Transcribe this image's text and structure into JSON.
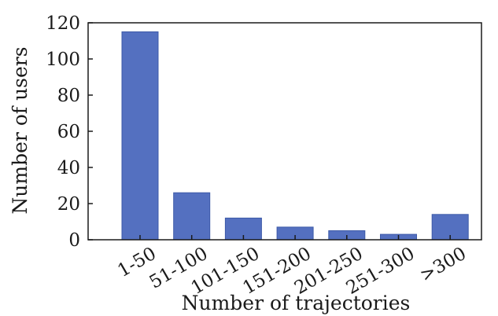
{
  "chart_data": {
    "type": "bar",
    "title": "",
    "xlabel": "Number of trajectories",
    "ylabel": "Number of users",
    "categories": [
      "1-50",
      "51-100",
      "101-150",
      "151-200",
      "201-250",
      "251-300",
      ">300"
    ],
    "values": [
      115,
      26,
      12,
      7,
      5,
      3,
      14
    ],
    "ylim": [
      0,
      120
    ],
    "yticks": [
      "0",
      "20",
      "40",
      "60",
      "80",
      "100",
      "120"
    ],
    "grid": false,
    "legend": "none",
    "colors": {
      "bar": "#5470c0"
    }
  }
}
